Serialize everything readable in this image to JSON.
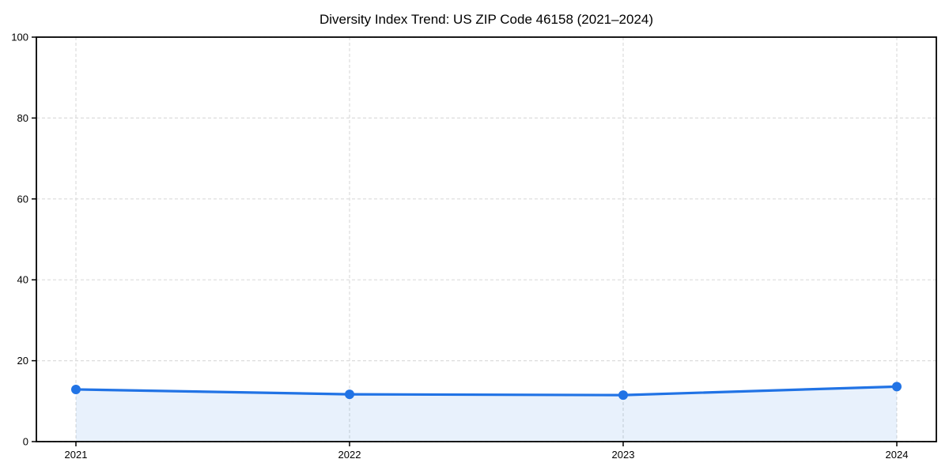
{
  "chart_data": {
    "type": "area",
    "title": "Diversity Index Trend: US ZIP Code 46158 (2021–2024)",
    "categories": [
      "2021",
      "2022",
      "2023",
      "2024"
    ],
    "series": [
      {
        "name": "Diversity Index",
        "values": [
          12.9,
          11.7,
          11.5,
          13.6
        ]
      }
    ],
    "xlabel": "",
    "ylabel": "",
    "ylim": [
      0,
      100
    ],
    "yticks": [
      0,
      20,
      40,
      60,
      80,
      100
    ],
    "grid": "dashed",
    "legend_position": "none",
    "colors": {
      "line": "#2173e5",
      "marker": "#2173e5",
      "area_fill": "#2173e5",
      "grid": "#dcdcdc",
      "axis": "#000000",
      "text": "#000000",
      "background": "#ffffff"
    }
  }
}
